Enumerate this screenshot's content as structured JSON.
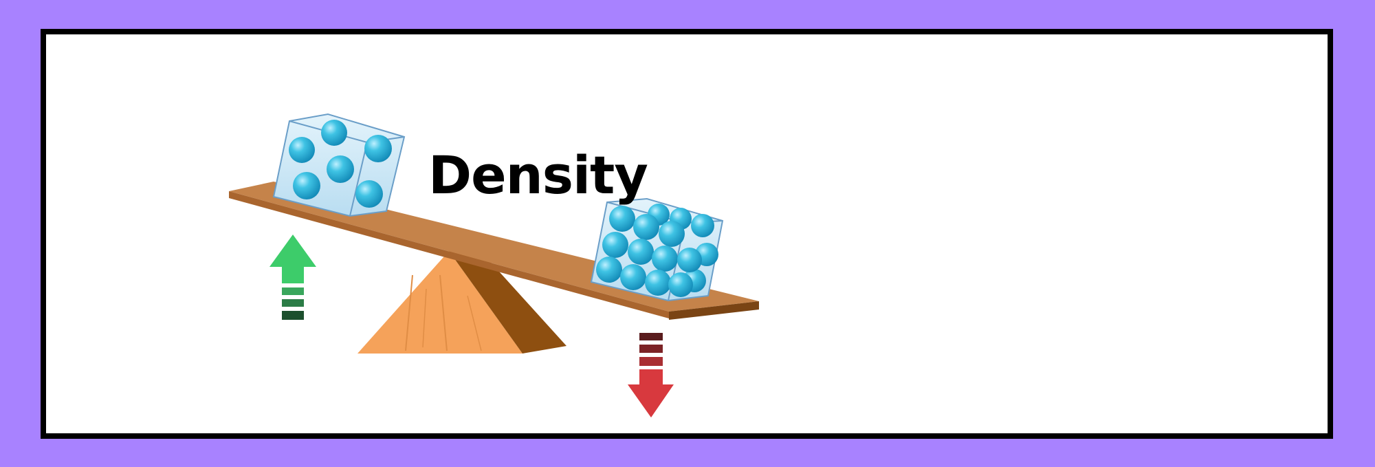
{
  "title": "Density",
  "colors": {
    "background": "#a882ff",
    "frame": "#000000",
    "board": "#c5834a",
    "fulcrum": "#f5a25a",
    "sphere": "#2fb7d8",
    "arrow_up": "#3dcc6a",
    "arrow_down": "#d8393e"
  },
  "illustration": {
    "low_density_cube_icon": "sparse-spheres-cube-icon",
    "high_density_cube_icon": "dense-spheres-cube-icon",
    "up_arrow_icon": "arrow-up-icon",
    "down_arrow_icon": "arrow-down-icon"
  }
}
